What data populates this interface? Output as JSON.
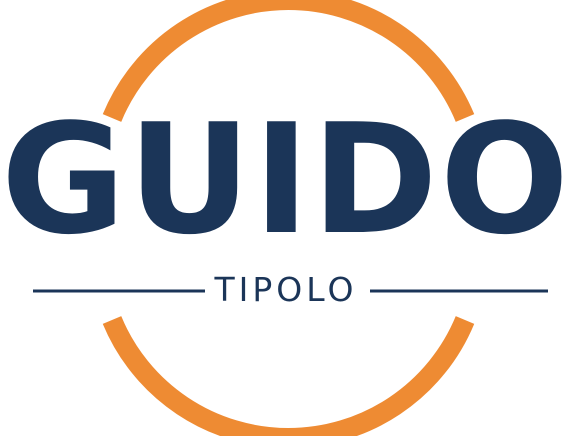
{
  "logo": {
    "name": "GUIDO",
    "tagline": "TIPOLO"
  },
  "colors": {
    "ring": "#ee8b33",
    "text": "#1b3558",
    "rule": "#1b3558",
    "background": "#ffffff"
  }
}
